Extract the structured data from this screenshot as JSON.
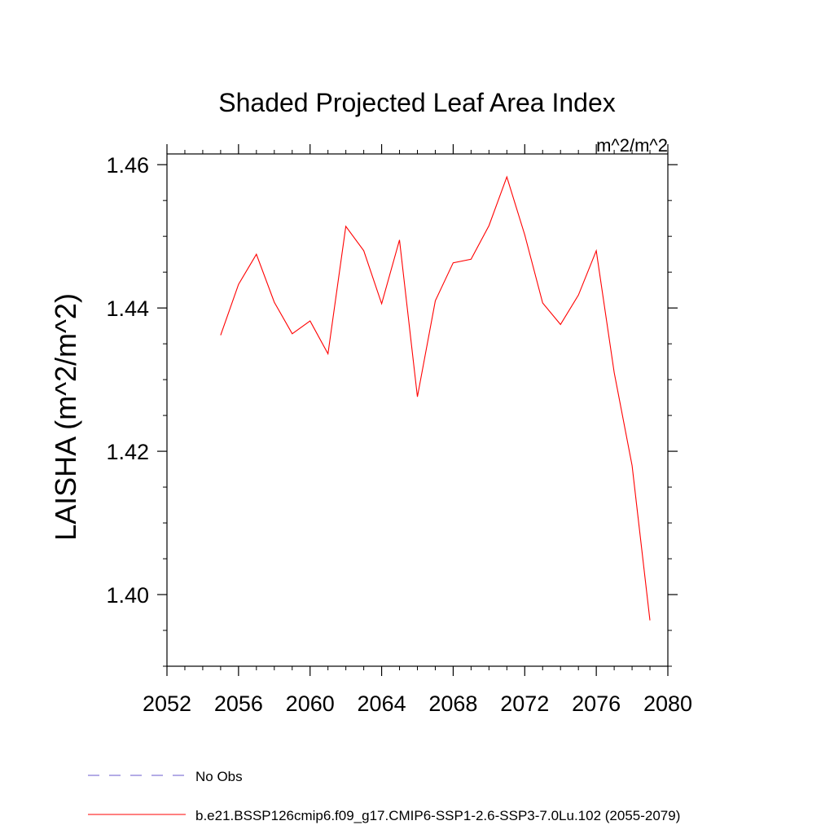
{
  "chart_data": {
    "type": "line",
    "title": "Shaded Projected Leaf Area Index",
    "units_label": "m^2/m^2",
    "ylabel": "LAISHA  (m^2/m^2)",
    "xlabel": "",
    "xlim": [
      2052,
      2080
    ],
    "ylim": [
      1.39,
      1.4615
    ],
    "x_ticks": [
      "2052",
      "2056",
      "2060",
      "2064",
      "2068",
      "2072",
      "2076",
      "2080"
    ],
    "y_ticks": [
      "1.40",
      "1.42",
      "1.44",
      "1.46"
    ],
    "x_tick_values": [
      2052,
      2056,
      2060,
      2064,
      2068,
      2072,
      2076,
      2080
    ],
    "y_tick_values": [
      1.4,
      1.42,
      1.44,
      1.46
    ],
    "grid": false,
    "legend_position": "bottom-left",
    "series": [
      {
        "name": "No Obs",
        "color": "#6a5acd",
        "dash": true,
        "x": [],
        "y": []
      },
      {
        "name": "b.e21.BSSP126cmip6.f09_g17.CMIP6-SSP1-2.6-SSP3-7.0Lu.102 (2055-2079)",
        "color": "#ff0000",
        "dash": false,
        "x": [
          2055,
          2056,
          2057,
          2058,
          2059,
          2060,
          2061,
          2062,
          2063,
          2064,
          2065,
          2066,
          2067,
          2068,
          2069,
          2070,
          2071,
          2072,
          2073,
          2074,
          2075,
          2076,
          2077,
          2078,
          2079
        ],
        "y": [
          1.4362,
          1.4433,
          1.4475,
          1.4408,
          1.4364,
          1.4382,
          1.4336,
          1.4514,
          1.448,
          1.4406,
          1.4495,
          1.4276,
          1.441,
          1.4463,
          1.4468,
          1.4515,
          1.4583,
          1.4502,
          1.4407,
          1.4377,
          1.4418,
          1.448,
          1.431,
          1.418,
          1.3964
        ]
      }
    ]
  }
}
